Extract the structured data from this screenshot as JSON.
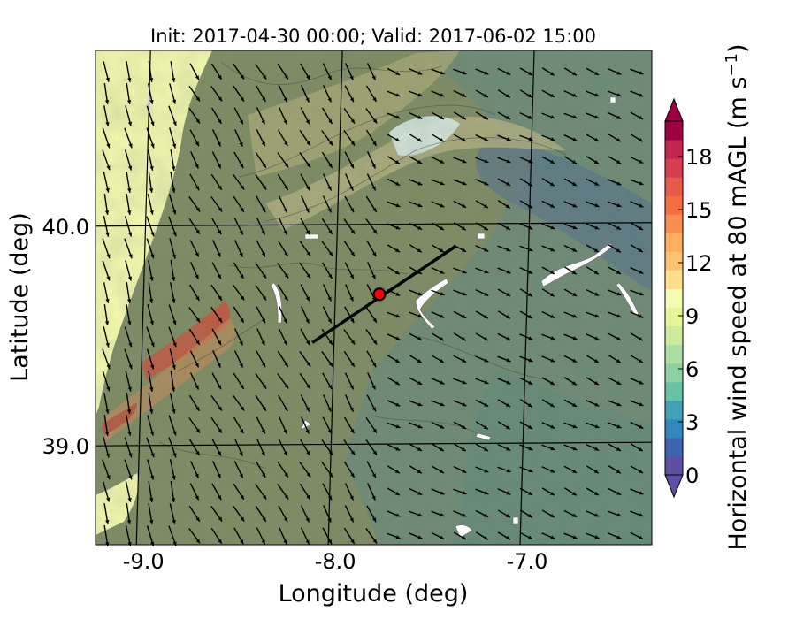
{
  "chart_data": {
    "type": "heatmap",
    "title": "Init: 2017-04-30 00:00; Valid: 2017-06-02 15:00",
    "xlabel": "Longitude (deg)",
    "ylabel": "Latitude (deg)",
    "xlim": [
      -9.25,
      -6.35
    ],
    "ylim": [
      38.55,
      40.8
    ],
    "xticks": [
      {
        "value": -9.0,
        "label": "-9.0"
      },
      {
        "value": -8.0,
        "label": "-8.0"
      },
      {
        "value": -7.0,
        "label": "-7.0"
      }
    ],
    "yticks": [
      {
        "value": 39.0,
        "label": "39.0"
      },
      {
        "value": 40.0,
        "label": "40.0"
      }
    ],
    "grid": true,
    "colorbar": {
      "label": "Horizontal wind speed at 80 mAGL (m s",
      "label_exponent": "−1",
      "label_close": ")",
      "min": 0,
      "max": 20,
      "extend": "both",
      "ticks": [
        {
          "value": 0,
          "label": "0"
        },
        {
          "value": 3,
          "label": "3"
        },
        {
          "value": 6,
          "label": "6"
        },
        {
          "value": 9,
          "label": "9"
        },
        {
          "value": 12,
          "label": "12"
        },
        {
          "value": 15,
          "label": "15"
        },
        {
          "value": 18,
          "label": "18"
        }
      ],
      "colors": [
        "#5e4fa2",
        "#3f64af",
        "#3288bd",
        "#429fb4",
        "#66c2a5",
        "#8ed0a4",
        "#abdda4",
        "#cdea9d",
        "#e6f598",
        "#f6fbb2",
        "#fee08b",
        "#fdc373",
        "#fdae61",
        "#f88d52",
        "#f46d43",
        "#e55a48",
        "#d53e4f",
        "#c0264e",
        "#9e0142"
      ],
      "under_color": "#5e4fa2",
      "over_color": "#9e0142"
    },
    "transect": {
      "start": {
        "lon": -8.12,
        "lat": 39.47
      },
      "end": {
        "lon": -7.37,
        "lat": 39.91
      }
    },
    "site_marker": {
      "lon": -7.77,
      "lat": 39.69,
      "color": "#ff0000"
    },
    "wind_vectors": {
      "general_direction": "from north-west to south-east",
      "typical_speed_range_ms": [
        5,
        10
      ],
      "coastal_speed_range_ms": [
        8,
        11
      ]
    }
  }
}
